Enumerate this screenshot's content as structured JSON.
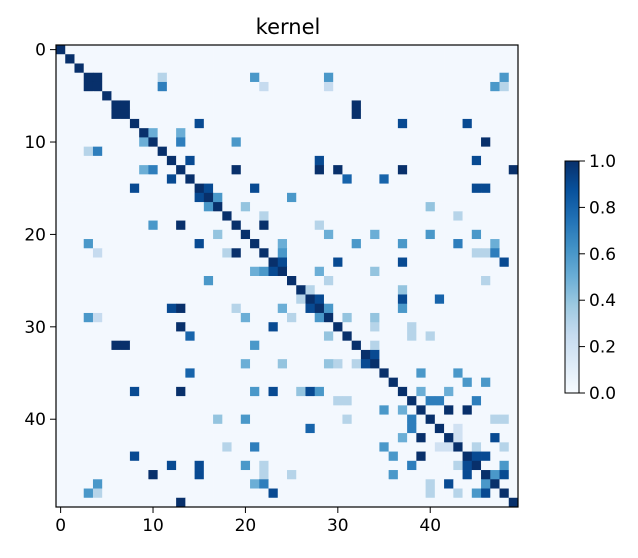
{
  "chart_data": {
    "type": "heatmap",
    "title": "kernel",
    "xlabel": "",
    "ylabel": "",
    "size": 50,
    "x_ticks": [
      0,
      10,
      20,
      30,
      40
    ],
    "y_ticks": [
      0,
      10,
      20,
      30,
      40
    ],
    "colormap": "Blues",
    "colorbar": {
      "min": 0,
      "max": 1,
      "ticks": [
        "0.0",
        "0.2",
        "0.4",
        "0.6",
        "0.8",
        "1.0"
      ]
    },
    "background_value": 0.02,
    "diagonal_value": 1.0,
    "symmetric": true,
    "offdiag": [
      [
        3,
        4,
        1.0
      ],
      [
        3,
        11,
        0.3
      ],
      [
        3,
        21,
        0.6
      ],
      [
        3,
        29,
        0.6
      ],
      [
        3,
        48,
        0.6
      ],
      [
        4,
        11,
        0.7
      ],
      [
        4,
        22,
        0.25
      ],
      [
        4,
        29,
        0.25
      ],
      [
        4,
        47,
        0.6
      ],
      [
        4,
        48,
        0.3
      ],
      [
        6,
        7,
        1.0
      ],
      [
        6,
        32,
        1.0
      ],
      [
        7,
        32,
        1.0
      ],
      [
        8,
        15,
        0.9
      ],
      [
        8,
        37,
        0.9
      ],
      [
        8,
        44,
        0.9
      ],
      [
        9,
        10,
        0.5
      ],
      [
        9,
        13,
        0.5
      ],
      [
        10,
        13,
        0.7
      ],
      [
        10,
        19,
        0.6
      ],
      [
        10,
        46,
        1.0
      ],
      [
        12,
        14,
        0.9
      ],
      [
        12,
        28,
        0.9
      ],
      [
        12,
        45,
        0.9
      ],
      [
        13,
        19,
        1.0
      ],
      [
        13,
        28,
        1.0
      ],
      [
        13,
        30,
        1.0
      ],
      [
        13,
        37,
        1.0
      ],
      [
        13,
        49,
        1.0
      ],
      [
        14,
        31,
        0.8
      ],
      [
        14,
        35,
        0.8
      ],
      [
        15,
        16,
        0.9
      ],
      [
        15,
        21,
        0.9
      ],
      [
        15,
        45,
        0.9
      ],
      [
        15,
        46,
        0.9
      ],
      [
        16,
        17,
        0.6
      ],
      [
        16,
        25,
        0.6
      ],
      [
        17,
        20,
        0.4
      ],
      [
        17,
        40,
        0.4
      ],
      [
        18,
        22,
        0.3
      ],
      [
        18,
        43,
        0.3
      ],
      [
        19,
        22,
        1.0
      ],
      [
        19,
        28,
        0.3
      ],
      [
        20,
        29,
        0.5
      ],
      [
        20,
        34,
        0.5
      ],
      [
        20,
        40,
        0.6
      ],
      [
        20,
        45,
        0.6
      ],
      [
        21,
        24,
        0.5
      ],
      [
        21,
        32,
        0.6
      ],
      [
        21,
        37,
        0.6
      ],
      [
        21,
        43,
        0.7
      ],
      [
        21,
        47,
        0.5
      ],
      [
        22,
        24,
        0.6
      ],
      [
        22,
        45,
        0.3
      ],
      [
        22,
        46,
        0.3
      ],
      [
        22,
        47,
        0.7
      ],
      [
        23,
        24,
        0.9
      ],
      [
        23,
        30,
        0.9
      ],
      [
        23,
        37,
        0.9
      ],
      [
        23,
        48,
        0.9
      ],
      [
        24,
        28,
        0.5
      ],
      [
        24,
        34,
        0.4
      ],
      [
        25,
        29,
        0.3
      ],
      [
        25,
        46,
        0.3
      ],
      [
        26,
        27,
        0.3
      ],
      [
        26,
        37,
        0.4
      ],
      [
        27,
        28,
        0.9
      ],
      [
        27,
        37,
        0.9
      ],
      [
        27,
        41,
        0.8
      ],
      [
        28,
        29,
        0.6
      ],
      [
        28,
        37,
        0.6
      ],
      [
        29,
        31,
        0.4
      ],
      [
        29,
        34,
        0.4
      ],
      [
        30,
        34,
        0.3
      ],
      [
        30,
        38,
        0.3
      ],
      [
        31,
        38,
        0.3
      ],
      [
        31,
        40,
        0.3
      ],
      [
        32,
        34,
        0.3
      ],
      [
        33,
        34,
        0.9
      ],
      [
        35,
        39,
        0.6
      ],
      [
        35,
        43,
        0.6
      ],
      [
        36,
        44,
        0.6
      ],
      [
        36,
        46,
        0.6
      ],
      [
        37,
        39,
        0.5
      ],
      [
        37,
        42,
        0.5
      ],
      [
        38,
        40,
        0.7
      ],
      [
        38,
        41,
        0.7
      ],
      [
        38,
        45,
        0.7
      ],
      [
        39,
        42,
        1.0
      ],
      [
        39,
        44,
        1.0
      ],
      [
        40,
        47,
        0.3
      ],
      [
        40,
        48,
        0.3
      ],
      [
        41,
        43,
        0.2
      ],
      [
        42,
        43,
        0.2
      ],
      [
        42,
        47,
        0.9
      ],
      [
        43,
        45,
        0.3
      ],
      [
        43,
        48,
        0.3
      ],
      [
        44,
        45,
        0.9
      ],
      [
        44,
        46,
        0.9
      ],
      [
        45,
        48,
        0.6
      ],
      [
        46,
        47,
        0.6
      ],
      [
        46,
        48,
        0.9
      ]
    ]
  }
}
